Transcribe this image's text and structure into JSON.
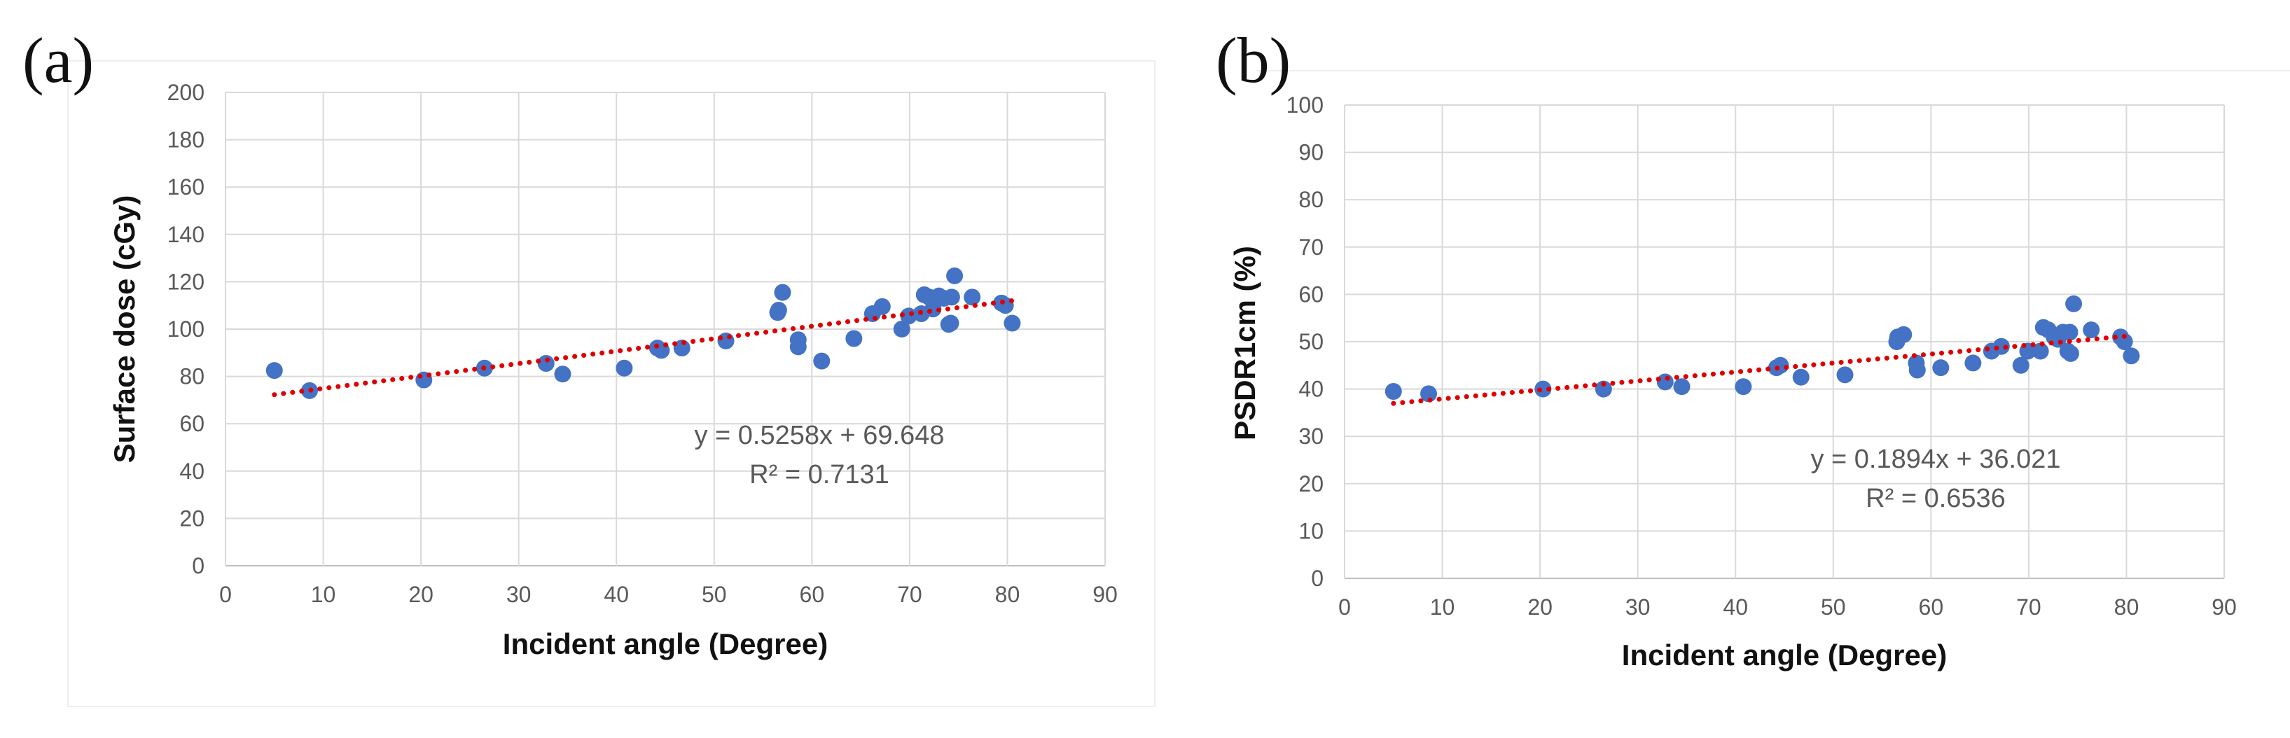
{
  "chart_data": [
    {
      "panel_label": "(a)",
      "type": "scatter",
      "xlabel": "Incident angle (Degree)",
      "ylabel": "Surface dose (cGy)",
      "xlim": [
        0,
        90
      ],
      "ylim": [
        0,
        200
      ],
      "x_ticks": [
        0,
        10,
        20,
        30,
        40,
        50,
        60,
        70,
        80,
        90
      ],
      "y_ticks": [
        0,
        20,
        40,
        60,
        80,
        100,
        120,
        140,
        160,
        180,
        200
      ],
      "grid": true,
      "marker_color": "#4472C4",
      "trendline_color": "#E00000",
      "trendline": {
        "slope": 0.5258,
        "intercept": 69.648,
        "x_range": [
          5,
          80.5
        ]
      },
      "equation": "y = 0.5258x + 69.648",
      "r_squared": "R² = 0.7131",
      "series": [
        {
          "name": "Surface dose",
          "points": [
            [
              5,
              82.5
            ],
            [
              8.6,
              74
            ],
            [
              20.3,
              78.5
            ],
            [
              26.5,
              83.5
            ],
            [
              32.8,
              85.5
            ],
            [
              34.5,
              81
            ],
            [
              40.8,
              83.5
            ],
            [
              44.2,
              92
            ],
            [
              44.6,
              91
            ],
            [
              46.7,
              92
            ],
            [
              51.2,
              95
            ],
            [
              56.5,
              107
            ],
            [
              56.6,
              108
            ],
            [
              57,
              115.5
            ],
            [
              58.6,
              95.5
            ],
            [
              58.6,
              92.5
            ],
            [
              61,
              86.5
            ],
            [
              64.3,
              96
            ],
            [
              66.2,
              106.5
            ],
            [
              67.2,
              109.5
            ],
            [
              69.2,
              100
            ],
            [
              69.9,
              105.5
            ],
            [
              71.2,
              106.5
            ],
            [
              71.5,
              114.5
            ],
            [
              72,
              113.5
            ],
            [
              72.4,
              108.5
            ],
            [
              73,
              114
            ],
            [
              73.5,
              113
            ],
            [
              74,
              102
            ],
            [
              74.2,
              102.5
            ],
            [
              74.3,
              113.5
            ],
            [
              74.6,
              122.5
            ],
            [
              76.4,
              113.5
            ],
            [
              79.4,
              111
            ],
            [
              79.8,
              110
            ],
            [
              80.5,
              102.5
            ]
          ]
        }
      ]
    },
    {
      "panel_label": "(b)",
      "type": "scatter",
      "xlabel": "Incident angle (Degree)",
      "ylabel": "PSDR1cm (%)",
      "xlim": [
        0,
        90
      ],
      "ylim": [
        0,
        100
      ],
      "x_ticks": [
        0,
        10,
        20,
        30,
        40,
        50,
        60,
        70,
        80,
        90
      ],
      "y_ticks": [
        0,
        10,
        20,
        30,
        40,
        50,
        60,
        70,
        80,
        90,
        100
      ],
      "grid": true,
      "marker_color": "#4472C4",
      "trendline_color": "#E00000",
      "trendline": {
        "slope": 0.1894,
        "intercept": 36.021,
        "x_range": [
          5,
          80.5
        ]
      },
      "equation": "y = 0.1894x + 36.021",
      "r_squared": "R² = 0.6536",
      "series": [
        {
          "name": "PSDR1cm",
          "points": [
            [
              5,
              39.5
            ],
            [
              8.6,
              39
            ],
            [
              20.3,
              40
            ],
            [
              26.5,
              40
            ],
            [
              32.8,
              41.5
            ],
            [
              34.5,
              40.5
            ],
            [
              40.8,
              40.5
            ],
            [
              44.2,
              44.5
            ],
            [
              44.6,
              45
            ],
            [
              46.7,
              42.5
            ],
            [
              51.2,
              43
            ],
            [
              56.5,
              50
            ],
            [
              56.6,
              51
            ],
            [
              57.2,
              51.5
            ],
            [
              58.5,
              45.5
            ],
            [
              58.6,
              44
            ],
            [
              61,
              44.5
            ],
            [
              64.3,
              45.5
            ],
            [
              66.2,
              48
            ],
            [
              67.2,
              49
            ],
            [
              69.2,
              45
            ],
            [
              69.9,
              48
            ],
            [
              71.2,
              48
            ],
            [
              71.5,
              53
            ],
            [
              72,
              52.5
            ],
            [
              72.6,
              51
            ],
            [
              73,
              50.5
            ],
            [
              73.5,
              52
            ],
            [
              74,
              48
            ],
            [
              74.2,
              52
            ],
            [
              74.3,
              47.5
            ],
            [
              74.6,
              58
            ],
            [
              76.4,
              52.5
            ],
            [
              79.4,
              51
            ],
            [
              79.8,
              50
            ],
            [
              80.5,
              47
            ]
          ]
        }
      ]
    }
  ]
}
